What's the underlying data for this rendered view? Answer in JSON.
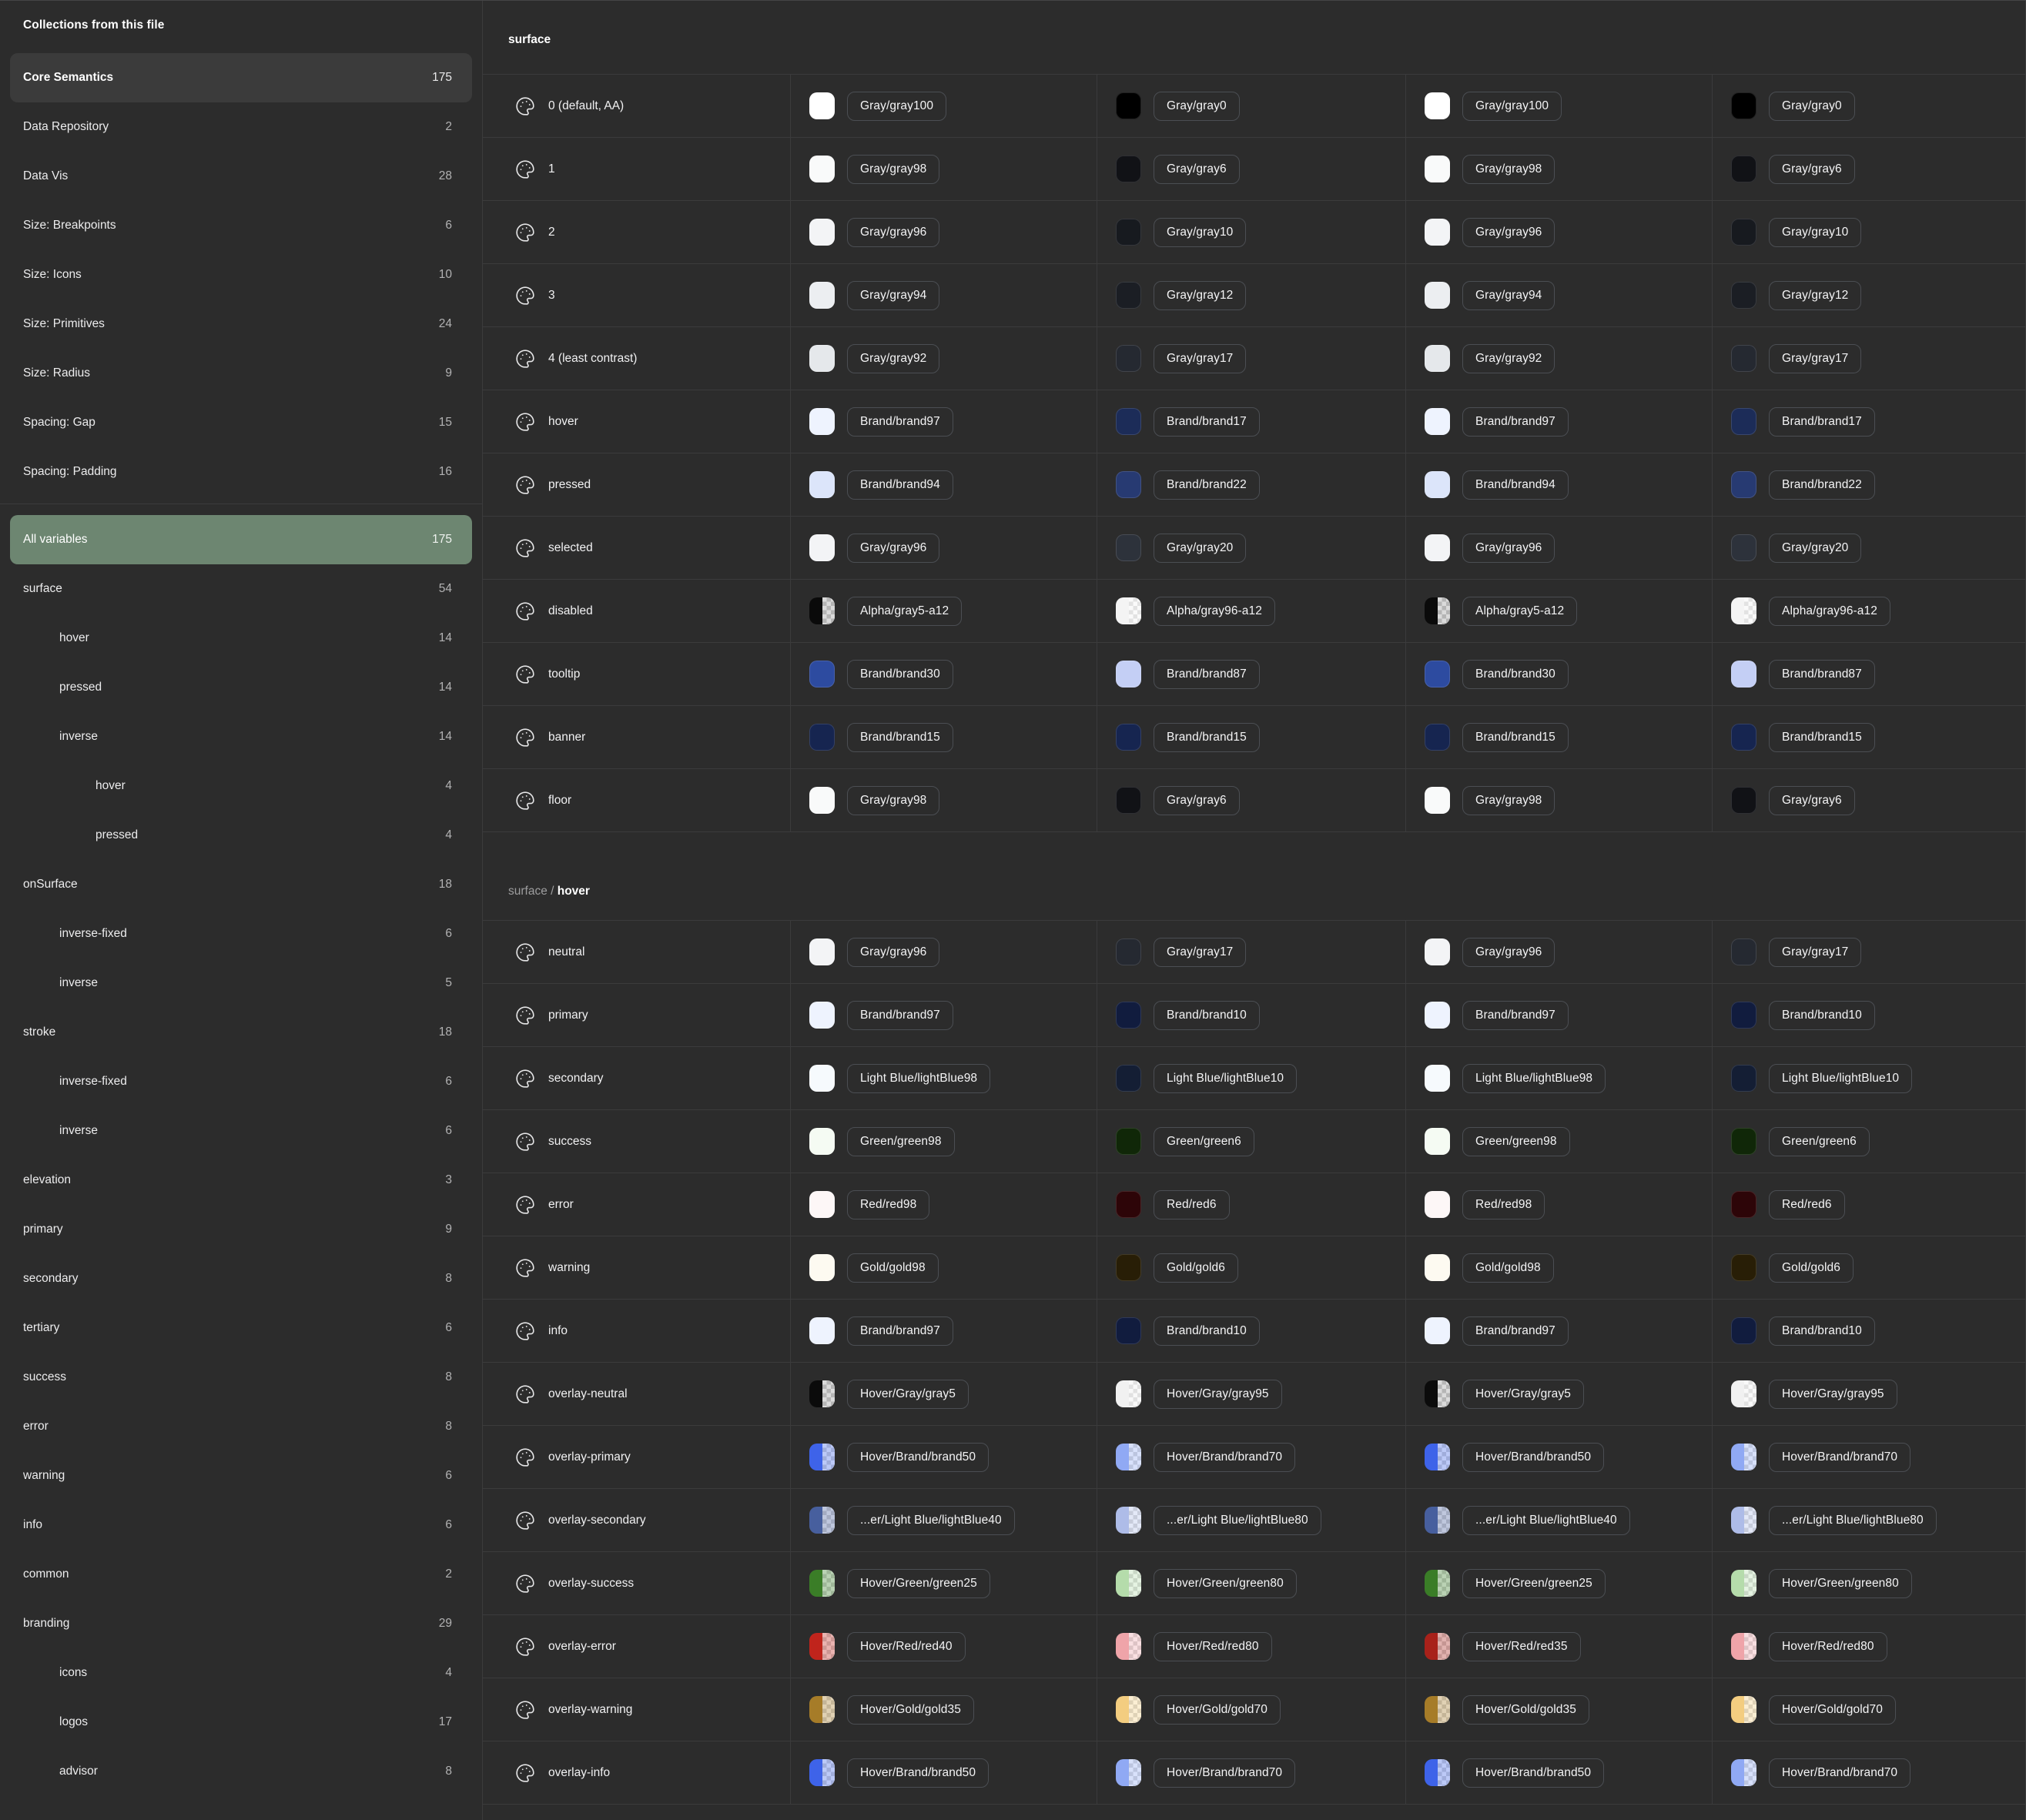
{
  "sidebar": {
    "header": "Collections from this file",
    "collections": [
      {
        "label": "Core Semantics",
        "count": "175",
        "active": true
      },
      {
        "label": "Data Repository",
        "count": "2",
        "active": false
      },
      {
        "label": "Data Vis",
        "count": "28",
        "active": false
      },
      {
        "label": "Size: Breakpoints",
        "count": "6",
        "active": false
      },
      {
        "label": "Size: Icons",
        "count": "10",
        "active": false
      },
      {
        "label": "Size: Primitives",
        "count": "24",
        "active": false
      },
      {
        "label": "Size: Radius",
        "count": "9",
        "active": false
      },
      {
        "label": "Spacing: Gap",
        "count": "15",
        "active": false
      },
      {
        "label": "Spacing: Padding",
        "count": "16",
        "active": false
      }
    ],
    "tree": [
      {
        "label": "All variables",
        "count": "175",
        "indent": 0,
        "selected": true
      },
      {
        "label": "surface",
        "count": "54",
        "indent": 0
      },
      {
        "label": "hover",
        "count": "14",
        "indent": 1
      },
      {
        "label": "pressed",
        "count": "14",
        "indent": 1
      },
      {
        "label": "inverse",
        "count": "14",
        "indent": 1
      },
      {
        "label": "hover",
        "count": "4",
        "indent": 2
      },
      {
        "label": "pressed",
        "count": "4",
        "indent": 2
      },
      {
        "label": "onSurface",
        "count": "18",
        "indent": 0
      },
      {
        "label": "inverse-fixed",
        "count": "6",
        "indent": 1
      },
      {
        "label": "inverse",
        "count": "5",
        "indent": 1
      },
      {
        "label": "stroke",
        "count": "18",
        "indent": 0
      },
      {
        "label": "inverse-fixed",
        "count": "6",
        "indent": 1
      },
      {
        "label": "inverse",
        "count": "6",
        "indent": 1
      },
      {
        "label": "elevation",
        "count": "3",
        "indent": 0
      },
      {
        "label": "primary",
        "count": "9",
        "indent": 0
      },
      {
        "label": "secondary",
        "count": "8",
        "indent": 0
      },
      {
        "label": "tertiary",
        "count": "6",
        "indent": 0
      },
      {
        "label": "success",
        "count": "8",
        "indent": 0
      },
      {
        "label": "error",
        "count": "8",
        "indent": 0
      },
      {
        "label": "warning",
        "count": "6",
        "indent": 0
      },
      {
        "label": "info",
        "count": "6",
        "indent": 0
      },
      {
        "label": "common",
        "count": "2",
        "indent": 0
      },
      {
        "label": "branding",
        "count": "29",
        "indent": 0
      },
      {
        "label": "icons",
        "count": "4",
        "indent": 1
      },
      {
        "label": "logos",
        "count": "17",
        "indent": 1
      },
      {
        "label": "advisor",
        "count": "8",
        "indent": 1
      }
    ]
  },
  "theme": {
    "background": "#2c2c2c",
    "divider": "#3b3b3c",
    "selected_green": "#6d8671",
    "active_item_bg": "#3b3b3b",
    "pill_border": "#4b4e53"
  },
  "main": {
    "sections": [
      {
        "prefix": "",
        "title": "surface",
        "rows": [
          {
            "name": "0 (default, AA)",
            "cells": [
              {
                "label": "Gray/gray100",
                "color": "#ffffff"
              },
              {
                "label": "Gray/gray0",
                "color": "#000000"
              },
              {
                "label": "Gray/gray100",
                "color": "#ffffff"
              },
              {
                "label": "Gray/gray0",
                "color": "#000000"
              }
            ]
          },
          {
            "name": "1",
            "cells": [
              {
                "label": "Gray/gray98",
                "color": "#f9fafa"
              },
              {
                "label": "Gray/gray6",
                "color": "#111216"
              },
              {
                "label": "Gray/gray98",
                "color": "#f9fafa"
              },
              {
                "label": "Gray/gray6",
                "color": "#111216"
              }
            ]
          },
          {
            "name": "2",
            "cells": [
              {
                "label": "Gray/gray96",
                "color": "#f3f4f6"
              },
              {
                "label": "Gray/gray10",
                "color": "#171a1f"
              },
              {
                "label": "Gray/gray96",
                "color": "#f3f4f6"
              },
              {
                "label": "Gray/gray10",
                "color": "#171a1f"
              }
            ]
          },
          {
            "name": "3",
            "cells": [
              {
                "label": "Gray/gray94",
                "color": "#eceef1"
              },
              {
                "label": "Gray/gray12",
                "color": "#1b1e24"
              },
              {
                "label": "Gray/gray94",
                "color": "#eceef1"
              },
              {
                "label": "Gray/gray12",
                "color": "#1b1e24"
              }
            ]
          },
          {
            "name": "4 (least contrast)",
            "cells": [
              {
                "label": "Gray/gray92",
                "color": "#e5e8eb"
              },
              {
                "label": "Gray/gray17",
                "color": "#252931"
              },
              {
                "label": "Gray/gray92",
                "color": "#e5e8eb"
              },
              {
                "label": "Gray/gray17",
                "color": "#252931"
              }
            ]
          },
          {
            "name": "hover",
            "cells": [
              {
                "label": "Brand/brand97",
                "color": "#eef3fe"
              },
              {
                "label": "Brand/brand17",
                "color": "#1c2c58"
              },
              {
                "label": "Brand/brand97",
                "color": "#eef3fe"
              },
              {
                "label": "Brand/brand17",
                "color": "#1c2c58"
              }
            ]
          },
          {
            "name": "pressed",
            "cells": [
              {
                "label": "Brand/brand94",
                "color": "#dce5fa"
              },
              {
                "label": "Brand/brand22",
                "color": "#273a72"
              },
              {
                "label": "Brand/brand94",
                "color": "#dce5fa"
              },
              {
                "label": "Brand/brand22",
                "color": "#273a72"
              }
            ]
          },
          {
            "name": "selected",
            "cells": [
              {
                "label": "Gray/gray96",
                "color": "#f3f4f6"
              },
              {
                "label": "Gray/gray20",
                "color": "#2d323b"
              },
              {
                "label": "Gray/gray96",
                "color": "#f3f4f6"
              },
              {
                "label": "Gray/gray20",
                "color": "#2d323b"
              }
            ]
          },
          {
            "name": "disabled",
            "cells": [
              {
                "label": "Alpha/gray5-a12",
                "color": "#0a0a0a",
                "split": true,
                "tint": 0.15
              },
              {
                "label": "Alpha/gray96-a12",
                "color": "#f4f4f4",
                "split": true,
                "tint": 0.45
              },
              {
                "label": "Alpha/gray5-a12",
                "color": "#0a0a0a",
                "split": true,
                "tint": 0.15
              },
              {
                "label": "Alpha/gray96-a12",
                "color": "#f4f4f4",
                "split": true,
                "tint": 0.45
              }
            ]
          },
          {
            "name": "tooltip",
            "cells": [
              {
                "label": "Brand/brand30",
                "color": "#2d4ba0"
              },
              {
                "label": "Brand/brand87",
                "color": "#c4cff5"
              },
              {
                "label": "Brand/brand30",
                "color": "#2d4ba0"
              },
              {
                "label": "Brand/brand87",
                "color": "#c4cff5"
              }
            ]
          },
          {
            "name": "banner",
            "cells": [
              {
                "label": "Brand/brand15",
                "color": "#162550"
              },
              {
                "label": "Brand/brand15",
                "color": "#162550"
              },
              {
                "label": "Brand/brand15",
                "color": "#162550"
              },
              {
                "label": "Brand/brand15",
                "color": "#162550"
              }
            ]
          },
          {
            "name": "floor",
            "cells": [
              {
                "label": "Gray/gray98",
                "color": "#f9fafa"
              },
              {
                "label": "Gray/gray6",
                "color": "#111216"
              },
              {
                "label": "Gray/gray98",
                "color": "#f9fafa"
              },
              {
                "label": "Gray/gray6",
                "color": "#111216"
              }
            ]
          }
        ]
      },
      {
        "prefix": "surface / ",
        "title": "hover",
        "rows": [
          {
            "name": "neutral",
            "cells": [
              {
                "label": "Gray/gray96",
                "color": "#f3f4f6"
              },
              {
                "label": "Gray/gray17",
                "color": "#252931"
              },
              {
                "label": "Gray/gray96",
                "color": "#f3f4f6"
              },
              {
                "label": "Gray/gray17",
                "color": "#252931"
              }
            ]
          },
          {
            "name": "primary",
            "cells": [
              {
                "label": "Brand/brand97",
                "color": "#eef3fe"
              },
              {
                "label": "Brand/brand10",
                "color": "#111c3e"
              },
              {
                "label": "Brand/brand97",
                "color": "#eef3fe"
              },
              {
                "label": "Brand/brand10",
                "color": "#111c3e"
              }
            ]
          },
          {
            "name": "secondary",
            "cells": [
              {
                "label": "Light Blue/lightBlue98",
                "color": "#f6fafd"
              },
              {
                "label": "Light Blue/lightBlue10",
                "color": "#141e34"
              },
              {
                "label": "Light Blue/lightBlue98",
                "color": "#f6fafd"
              },
              {
                "label": "Light Blue/lightBlue10",
                "color": "#141e34"
              }
            ]
          },
          {
            "name": "success",
            "cells": [
              {
                "label": "Green/green98",
                "color": "#f5fbf3"
              },
              {
                "label": "Green/green6",
                "color": "#102708"
              },
              {
                "label": "Green/green98",
                "color": "#f5fbf3"
              },
              {
                "label": "Green/green6",
                "color": "#102708"
              }
            ]
          },
          {
            "name": "error",
            "cells": [
              {
                "label": "Red/red98",
                "color": "#fdf7f7"
              },
              {
                "label": "Red/red6",
                "color": "#2d0508"
              },
              {
                "label": "Red/red98",
                "color": "#fdf7f7"
              },
              {
                "label": "Red/red6",
                "color": "#2d0508"
              }
            ]
          },
          {
            "name": "warning",
            "cells": [
              {
                "label": "Gold/gold98",
                "color": "#fdfaf1"
              },
              {
                "label": "Gold/gold6",
                "color": "#281e06"
              },
              {
                "label": "Gold/gold98",
                "color": "#fdfaf1"
              },
              {
                "label": "Gold/gold6",
                "color": "#281e06"
              }
            ]
          },
          {
            "name": "info",
            "cells": [
              {
                "label": "Brand/brand97",
                "color": "#eef3fe"
              },
              {
                "label": "Brand/brand10",
                "color": "#111c3e"
              },
              {
                "label": "Brand/brand97",
                "color": "#eef3fe"
              },
              {
                "label": "Brand/brand10",
                "color": "#111c3e"
              }
            ]
          },
          {
            "name": "overlay-neutral",
            "cells": [
              {
                "label": "Hover/Gray/gray5",
                "color": "#0b0b0b",
                "split": true,
                "tint": 0.15
              },
              {
                "label": "Hover/Gray/gray95",
                "color": "#f1f1f1",
                "split": true,
                "tint": 0.45
              },
              {
                "label": "Hover/Gray/gray5",
                "color": "#0b0b0b",
                "split": true,
                "tint": 0.15
              },
              {
                "label": "Hover/Gray/gray95",
                "color": "#f1f1f1",
                "split": true,
                "tint": 0.45
              }
            ]
          },
          {
            "name": "overlay-primary",
            "cells": [
              {
                "label": "Hover/Brand/brand50",
                "color": "#3e63e9",
                "split": true,
                "tint": 0.35
              },
              {
                "label": "Hover/Brand/brand70",
                "color": "#90a9f4",
                "split": true,
                "tint": 0.35
              },
              {
                "label": "Hover/Brand/brand50",
                "color": "#3e63e9",
                "split": true,
                "tint": 0.35
              },
              {
                "label": "Hover/Brand/brand70",
                "color": "#90a9f4",
                "split": true,
                "tint": 0.35
              }
            ]
          },
          {
            "name": "overlay-secondary",
            "cells": [
              {
                "label": "...er/Light Blue/lightBlue40",
                "color": "#475f9e",
                "split": true,
                "tint": 0.35
              },
              {
                "label": "...er/Light Blue/lightBlue80",
                "color": "#aebce8",
                "split": true,
                "tint": 0.35
              },
              {
                "label": "...er/Light Blue/lightBlue40",
                "color": "#475f9e",
                "split": true,
                "tint": 0.35
              },
              {
                "label": "...er/Light Blue/lightBlue80",
                "color": "#aebce8",
                "split": true,
                "tint": 0.35
              }
            ]
          },
          {
            "name": "overlay-success",
            "cells": [
              {
                "label": "Hover/Green/green25",
                "color": "#3a7d27",
                "split": true,
                "tint": 0.35
              },
              {
                "label": "Hover/Green/green80",
                "color": "#b5dcab",
                "split": true,
                "tint": 0.35
              },
              {
                "label": "Hover/Green/green25",
                "color": "#3a7d27",
                "split": true,
                "tint": 0.35
              },
              {
                "label": "Hover/Green/green80",
                "color": "#b5dcab",
                "split": true,
                "tint": 0.35
              }
            ]
          },
          {
            "name": "overlay-error",
            "cells": [
              {
                "label": "Hover/Red/red40",
                "color": "#c0241c",
                "split": true,
                "tint": 0.35
              },
              {
                "label": "Hover/Red/red80",
                "color": "#efa4a9",
                "split": true,
                "tint": 0.35
              },
              {
                "label": "Hover/Red/red35",
                "color": "#a8211a",
                "split": true,
                "tint": 0.35
              },
              {
                "label": "Hover/Red/red80",
                "color": "#efa4a9",
                "split": true,
                "tint": 0.35
              }
            ]
          },
          {
            "name": "overlay-warning",
            "cells": [
              {
                "label": "Hover/Gold/gold35",
                "color": "#a67c28",
                "split": true,
                "tint": 0.35
              },
              {
                "label": "Hover/Gold/gold70",
                "color": "#f3cd80",
                "split": true,
                "tint": 0.35
              },
              {
                "label": "Hover/Gold/gold35",
                "color": "#a67c28",
                "split": true,
                "tint": 0.35
              },
              {
                "label": "Hover/Gold/gold70",
                "color": "#f3cd80",
                "split": true,
                "tint": 0.35
              }
            ]
          },
          {
            "name": "overlay-info",
            "cells": [
              {
                "label": "Hover/Brand/brand50",
                "color": "#3e63e9",
                "split": true,
                "tint": 0.35
              },
              {
                "label": "Hover/Brand/brand70",
                "color": "#90a9f4",
                "split": true,
                "tint": 0.35
              },
              {
                "label": "Hover/Brand/brand50",
                "color": "#3e63e9",
                "split": true,
                "tint": 0.35
              },
              {
                "label": "Hover/Brand/brand70",
                "color": "#90a9f4",
                "split": true,
                "tint": 0.35
              }
            ]
          }
        ]
      }
    ]
  }
}
